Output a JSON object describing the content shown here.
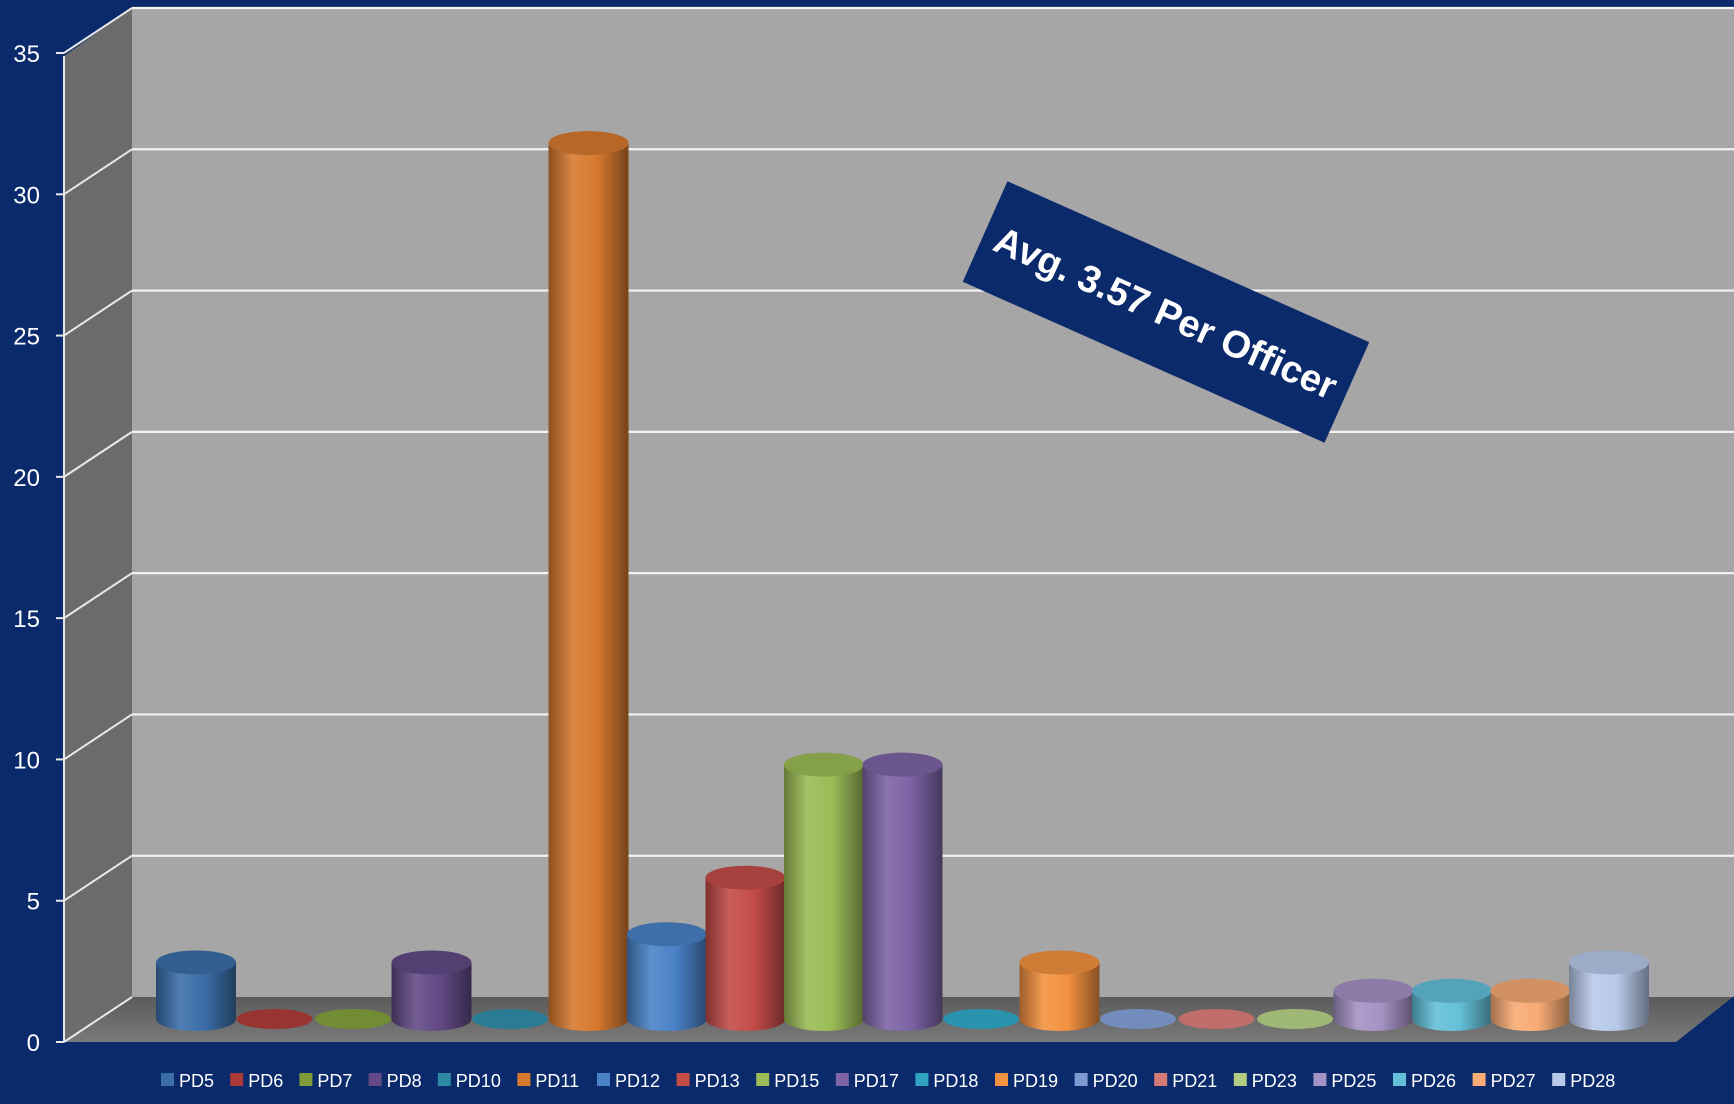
{
  "chart_data": {
    "type": "bar",
    "style": "3d-cylinder",
    "title": "",
    "xlabel": "",
    "ylabel": "",
    "ylim": [
      0,
      35
    ],
    "yticks": [
      0,
      5,
      10,
      15,
      20,
      25,
      30,
      35
    ],
    "grid": true,
    "legend_position": "bottom",
    "categories": [
      "PD5",
      "PD6",
      "PD7",
      "PD8",
      "PD10",
      "PD11",
      "PD12",
      "PD13",
      "PD15",
      "PD17",
      "PD18",
      "PD19",
      "PD20",
      "PD21",
      "PD23",
      "PD25",
      "PD26",
      "PD27",
      "PD28"
    ],
    "values": [
      2,
      0,
      0,
      2,
      0,
      31,
      3,
      5,
      9,
      9,
      0,
      2,
      0,
      0,
      0,
      1,
      1,
      1,
      2
    ],
    "colors": [
      "#3b6ea8",
      "#a93a38",
      "#7f9b3a",
      "#634a86",
      "#2d8aa3",
      "#d77a30",
      "#4a82c7",
      "#c44c49",
      "#9bbc56",
      "#7e64a6",
      "#2fa3c0",
      "#f39240",
      "#7d9bd2",
      "#d67a77",
      "#b2cc82",
      "#a592c4",
      "#63c0d8",
      "#f7ab75",
      "#b8c9ea"
    ],
    "annotation": "Avg. 3.57 Per Officer",
    "annotation_color": "#0a2a6b"
  }
}
